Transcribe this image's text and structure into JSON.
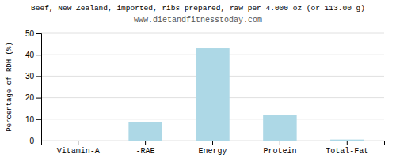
{
  "chart_data": {
    "type": "bar",
    "title": "Beef, New Zealand, imported, ribs prepared, raw per 4.000 oz (or 113.00 g)",
    "subtitle": "www.dietandfitnesstoday.com",
    "ylabel": "Percentage of RDH (%)",
    "categories": [
      "Vitamin-A",
      "-RAE",
      "Energy",
      "Protein",
      "Total-Fat"
    ],
    "values": [
      0.0,
      8.5,
      43.0,
      12.0,
      0.5
    ],
    "color": "#add8e6",
    "ylim": [
      0,
      50
    ],
    "yticks": [
      0,
      10,
      20,
      30,
      40,
      50
    ],
    "grid": true
  }
}
